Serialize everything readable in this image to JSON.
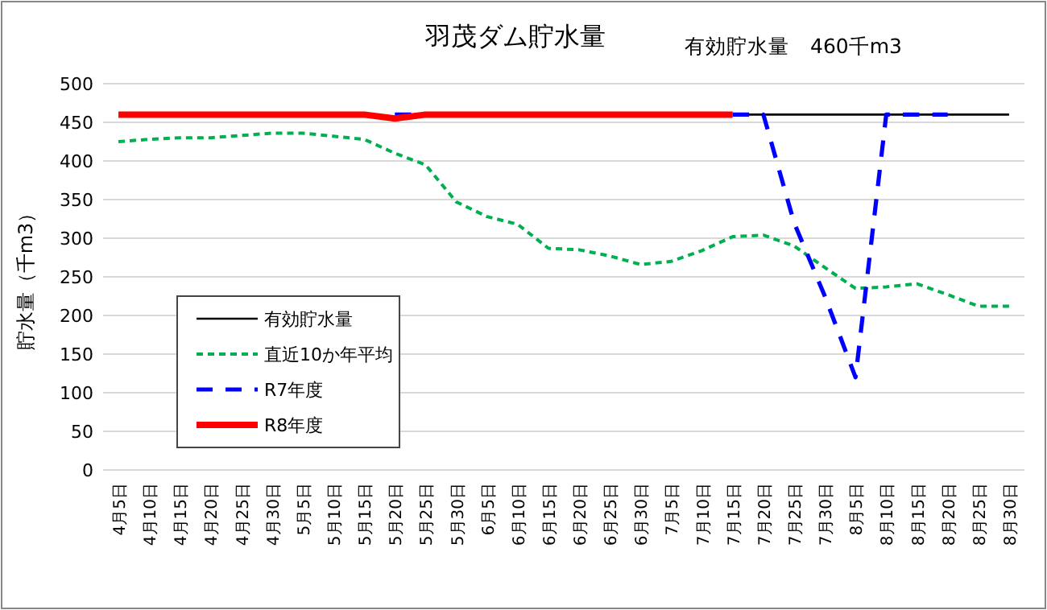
{
  "chart_data": {
    "type": "line",
    "title": "羽茂ダム貯水量",
    "ylabel": "貯水量（千m3）",
    "annotations": [
      "有効貯水量　460千m3"
    ],
    "categories": [
      "4月5日",
      "4月10日",
      "4月15日",
      "4月20日",
      "4月25日",
      "4月30日",
      "5月5日",
      "5月10日",
      "5月15日",
      "5月20日",
      "5月25日",
      "5月30日",
      "6月5日",
      "6月10日",
      "6月15日",
      "6月20日",
      "6月25日",
      "6月30日",
      "7月5日",
      "7月10日",
      "7月15日",
      "7月20日",
      "7月25日",
      "7月30日",
      "8月5日",
      "8月10日",
      "8月15日",
      "8月20日",
      "8月25日",
      "8月30日"
    ],
    "ylim": [
      0,
      500
    ],
    "yticks": [
      0,
      50,
      100,
      150,
      200,
      250,
      300,
      350,
      400,
      450,
      500
    ],
    "grid": "y",
    "legend": "bottom left",
    "marker": "none",
    "series": [
      {
        "name": "有効貯水量",
        "color": "#000000",
        "line_style": "solid",
        "values": [
          null,
          null,
          null,
          null,
          null,
          null,
          null,
          null,
          null,
          null,
          null,
          null,
          null,
          null,
          null,
          null,
          null,
          null,
          null,
          null,
          460,
          460,
          460,
          460,
          460,
          460,
          460,
          460,
          460,
          460
        ]
      },
      {
        "name": "直近10か年平均",
        "color": "#00b050",
        "line_style": "dotted",
        "values": [
          425,
          428,
          430,
          430,
          433,
          436,
          436,
          432,
          428,
          410,
          395,
          347,
          328,
          318,
          287,
          285,
          277,
          266,
          270,
          284,
          302,
          304,
          290,
          262,
          235,
          237,
          241,
          227,
          212,
          212
        ]
      },
      {
        "name": "R7年度",
        "color": "#0000ff",
        "line_style": "dashed",
        "values": [
          null,
          null,
          null,
          null,
          null,
          null,
          null,
          null,
          null,
          460,
          460,
          null,
          null,
          null,
          null,
          null,
          null,
          null,
          null,
          null,
          460,
          460,
          320,
          225,
          120,
          460,
          460,
          460,
          null,
          null
        ]
      },
      {
        "name": "R8年度",
        "color": "#ff0000",
        "line_style": "solid",
        "values": [
          460,
          460,
          460,
          460,
          460,
          460,
          460,
          460,
          460,
          455,
          460,
          460,
          460,
          460,
          460,
          460,
          460,
          460,
          460,
          460,
          460,
          null,
          null,
          null,
          null,
          null,
          null,
          null,
          null,
          null
        ]
      }
    ]
  }
}
